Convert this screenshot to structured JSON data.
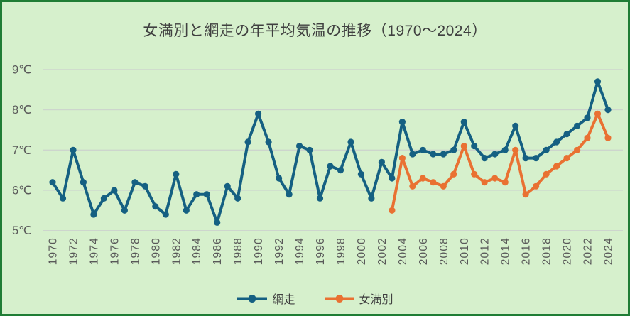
{
  "chart_data": {
    "type": "line",
    "title": "女満別と網走の年平均気温の推移（1970～2024）",
    "ylabel": "",
    "xlabel": "",
    "ylim": [
      5,
      9
    ],
    "grid": true,
    "legend_position": "bottom",
    "ytick_labels": [
      "9℃",
      "8℃",
      "7℃",
      "6℃",
      "5℃"
    ],
    "ytick_values": [
      9,
      8,
      7,
      6,
      5
    ],
    "xtick_labels": [
      "1970",
      "1972",
      "1974",
      "1976",
      "1978",
      "1980",
      "1982",
      "1984",
      "1986",
      "1988",
      "1990",
      "1992",
      "1994",
      "1996",
      "1998",
      "2000",
      "2002",
      "2004",
      "2006",
      "2008",
      "2010",
      "2012",
      "2014",
      "2016",
      "2018",
      "2020",
      "2022",
      "2024"
    ],
    "x": [
      1970,
      1971,
      1972,
      1973,
      1974,
      1975,
      1976,
      1977,
      1978,
      1979,
      1980,
      1981,
      1982,
      1983,
      1984,
      1985,
      1986,
      1987,
      1988,
      1989,
      1990,
      1991,
      1992,
      1993,
      1994,
      1995,
      1996,
      1997,
      1998,
      1999,
      2000,
      2001,
      2002,
      2003,
      2004,
      2005,
      2006,
      2007,
      2008,
      2009,
      2010,
      2011,
      2012,
      2013,
      2014,
      2015,
      2016,
      2017,
      2018,
      2019,
      2020,
      2021,
      2022,
      2023,
      2024
    ],
    "series": [
      {
        "name": "網走",
        "color": "#156082",
        "values": [
          6.2,
          5.8,
          7.0,
          6.2,
          5.4,
          5.8,
          6.0,
          5.5,
          6.2,
          6.1,
          5.6,
          5.4,
          6.4,
          5.5,
          5.9,
          5.9,
          5.2,
          6.1,
          5.8,
          7.2,
          7.9,
          7.2,
          6.3,
          5.9,
          7.1,
          7.0,
          5.8,
          6.6,
          6.5,
          7.2,
          6.4,
          5.8,
          6.7,
          6.3,
          7.7,
          6.9,
          7.0,
          6.9,
          6.9,
          7.0,
          7.7,
          7.1,
          6.8,
          6.9,
          7.0,
          7.6,
          6.8,
          6.8,
          7.0,
          7.2,
          7.4,
          7.6,
          7.8,
          8.7,
          8.0
        ]
      },
      {
        "name": "女満別",
        "color": "#E97132",
        "values": [
          null,
          null,
          null,
          null,
          null,
          null,
          null,
          null,
          null,
          null,
          null,
          null,
          null,
          null,
          null,
          null,
          null,
          null,
          null,
          null,
          null,
          null,
          null,
          null,
          null,
          null,
          null,
          null,
          null,
          null,
          null,
          null,
          null,
          5.5,
          6.8,
          6.1,
          6.3,
          6.2,
          6.1,
          6.4,
          7.1,
          6.4,
          6.2,
          6.3,
          6.2,
          7.0,
          5.9,
          6.1,
          6.4,
          6.6,
          6.8,
          7.0,
          7.3,
          7.9,
          7.3
        ]
      }
    ],
    "colors": {
      "background": "#d6f0cc",
      "frame_border": "#1f7d35",
      "gridline": "#cdd5cd",
      "tick_label": "#595959",
      "title": "#404040"
    }
  },
  "legend": {
    "items": [
      {
        "label": "網走"
      },
      {
        "label": "女満別"
      }
    ]
  }
}
